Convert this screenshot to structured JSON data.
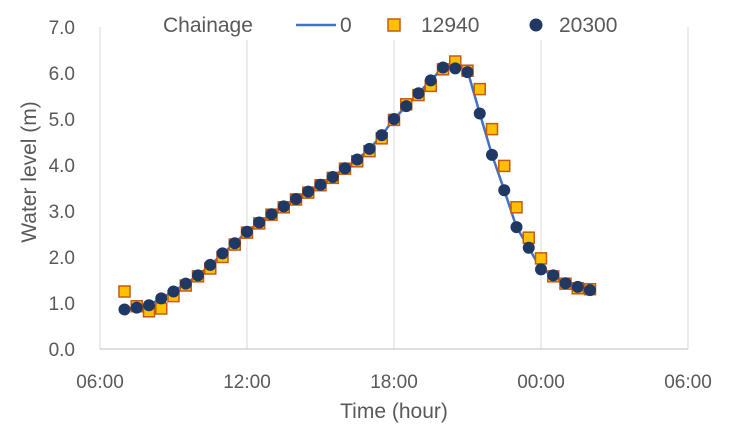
{
  "chart_data": {
    "type": "scatter",
    "xlabel": "Time (hour)",
    "ylabel": "Water level (m)",
    "xlim": [
      "06:00",
      "06:00 (+1 day)"
    ],
    "x_ticks": [
      "06:00",
      "12:00",
      "18:00",
      "00:00",
      "06:00"
    ],
    "ylim": [
      0,
      7
    ],
    "y_ticks": [
      "0.0",
      "1.0",
      "2.0",
      "3.0",
      "4.0",
      "5.0",
      "6.0",
      "7.0"
    ],
    "grid": "vertical",
    "legend": {
      "title": "Chainage",
      "position": "top"
    },
    "series": [
      {
        "name": "0",
        "style": "line",
        "color": "#4472c4",
        "x": [
          "07:00",
          "07:30",
          "08:00",
          "08:30",
          "09:00",
          "09:30",
          "10:00",
          "10:30",
          "11:00",
          "11:30",
          "12:00",
          "12:30",
          "13:00",
          "13:30",
          "14:00",
          "14:30",
          "15:00",
          "15:30",
          "16:00",
          "16:30",
          "17:00",
          "17:30",
          "18:00",
          "18:30",
          "19:00",
          "19:30",
          "20:00",
          "20:30",
          "21:00",
          "21:30",
          "22:00",
          "22:30",
          "23:00",
          "23:30",
          "00:00",
          "00:30",
          "01:00",
          "01:30",
          "02:00"
        ],
        "y": [
          0.86,
          0.92,
          0.96,
          1.1,
          1.26,
          1.42,
          1.6,
          1.82,
          2.07,
          2.3,
          2.55,
          2.75,
          2.93,
          3.1,
          3.26,
          3.42,
          3.57,
          3.74,
          3.93,
          4.12,
          4.35,
          4.65,
          5.0,
          5.28,
          5.56,
          5.84,
          6.12,
          6.2,
          6.05,
          5.12,
          4.22,
          3.45,
          2.65,
          2.2,
          1.73,
          1.6,
          1.45,
          1.36,
          1.28
        ]
      },
      {
        "name": "12940",
        "style": "square",
        "color": "#ffc000",
        "edge": "#c55a11",
        "x": [
          "07:00",
          "07:30",
          "08:00",
          "08:30",
          "09:00",
          "09:30",
          "10:00",
          "10:30",
          "11:00",
          "11:30",
          "12:00",
          "12:30",
          "13:00",
          "13:30",
          "14:00",
          "14:30",
          "15:00",
          "15:30",
          "16:00",
          "16:30",
          "17:00",
          "17:30",
          "18:00",
          "18:30",
          "19:00",
          "19:30",
          "20:00",
          "20:30",
          "21:00",
          "21:30",
          "22:00",
          "22:30",
          "23:00",
          "23:30",
          "00:00",
          "00:30",
          "01:00",
          "01:30",
          "02:00"
        ],
        "y": [
          1.25,
          0.93,
          0.82,
          0.88,
          1.15,
          1.38,
          1.58,
          1.75,
          2.0,
          2.27,
          2.53,
          2.73,
          2.92,
          3.08,
          3.25,
          3.4,
          3.56,
          3.72,
          3.92,
          4.08,
          4.3,
          4.58,
          4.98,
          5.32,
          5.52,
          5.72,
          6.08,
          6.25,
          6.05,
          5.65,
          4.78,
          3.98,
          3.08,
          2.42,
          1.97,
          1.58,
          1.42,
          1.32,
          1.3
        ]
      },
      {
        "name": "20300",
        "style": "circle",
        "color": "#203864",
        "x": [
          "07:00",
          "07:30",
          "08:00",
          "08:30",
          "09:00",
          "09:30",
          "10:00",
          "10:30",
          "11:00",
          "11:30",
          "12:00",
          "12:30",
          "13:00",
          "13:30",
          "14:00",
          "14:30",
          "15:00",
          "15:30",
          "16:00",
          "16:30",
          "17:00",
          "17:30",
          "18:00",
          "18:30",
          "19:00",
          "19:30",
          "20:00",
          "20:30",
          "21:00",
          "21:30",
          "22:00",
          "22:30",
          "23:00",
          "23:30",
          "00:00",
          "00:30",
          "01:00",
          "01:30",
          "02:00"
        ],
        "y": [
          0.86,
          0.9,
          0.95,
          1.1,
          1.25,
          1.42,
          1.6,
          1.83,
          2.08,
          2.3,
          2.55,
          2.75,
          2.93,
          3.1,
          3.26,
          3.42,
          3.57,
          3.74,
          3.93,
          4.12,
          4.35,
          4.65,
          5.0,
          5.28,
          5.56,
          5.84,
          6.12,
          6.1,
          6.02,
          5.12,
          4.22,
          3.45,
          2.65,
          2.2,
          1.73,
          1.6,
          1.43,
          1.35,
          1.28
        ]
      }
    ]
  }
}
